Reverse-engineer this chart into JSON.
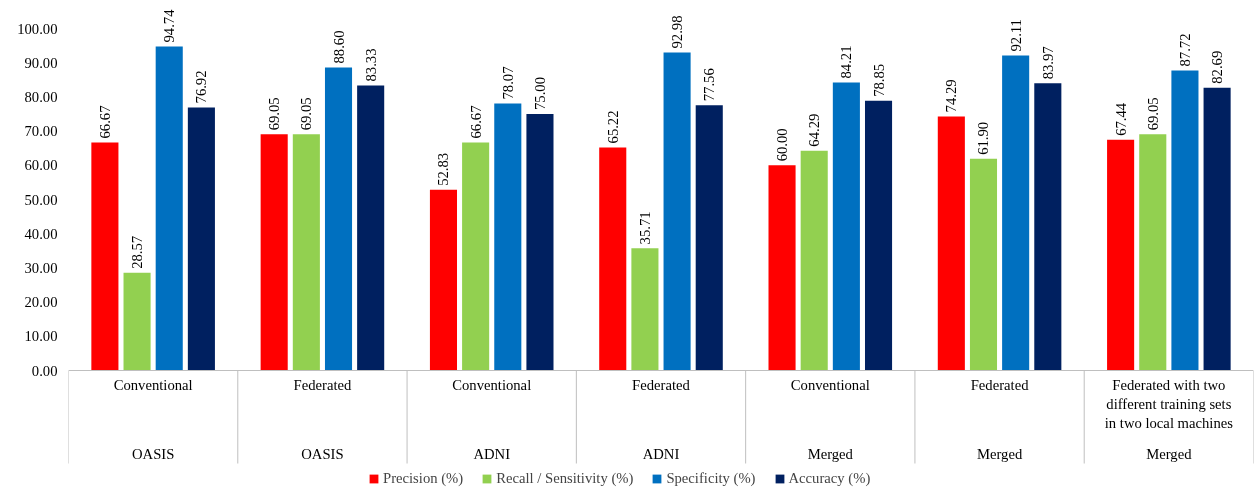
{
  "chart_data": {
    "type": "bar",
    "categories": [
      "Conventional",
      "Federated",
      "Conventional",
      "Federated",
      "Conventional",
      "Federated",
      "Federated with two different training sets in two local machines"
    ],
    "annotations": [
      "OASIS",
      "OASIS",
      "ADNI",
      "ADNI",
      "Merged",
      "Merged",
      "Merged"
    ],
    "series": [
      {
        "name": "Precision (%)",
        "color": "#ff0000",
        "values": [
          66.67,
          69.05,
          52.83,
          65.22,
          60.0,
          74.29,
          67.44
        ],
        "value_labels": [
          "66.67",
          "69.05",
          "52.83",
          "65.22",
          "60.00",
          "74.29",
          "67.44"
        ]
      },
      {
        "name": "Recall / Sensitivity (%)",
        "color": "#92d050",
        "values": [
          28.57,
          69.05,
          66.67,
          35.71,
          64.29,
          61.9,
          69.05
        ],
        "value_labels": [
          "28.57",
          "69.05",
          "66.67",
          "35.71",
          "64.29",
          "61.90",
          "69.05"
        ]
      },
      {
        "name": "Specificity (%)",
        "color": "#0070c0",
        "values": [
          94.74,
          88.6,
          78.07,
          92.98,
          84.21,
          92.11,
          87.72
        ],
        "value_labels": [
          "94.74",
          "88.60",
          "78.07",
          "92.98",
          "84.21",
          "92.11",
          "87.72"
        ]
      },
      {
        "name": "Accuracy (%)",
        "color": "#002060",
        "values": [
          76.92,
          83.33,
          75.0,
          77.56,
          78.85,
          83.97,
          82.69
        ],
        "value_labels": [
          "76.92",
          "83.33",
          "75.00",
          "77.56",
          "78.85",
          "83.97",
          "82.69"
        ]
      }
    ],
    "ylim": [
      0,
      100
    ],
    "yticks": [
      {
        "value": 0,
        "label": "0.00"
      },
      {
        "value": 10,
        "label": "10.00"
      },
      {
        "value": 20,
        "label": "20.00"
      },
      {
        "value": 30,
        "label": "30.00"
      },
      {
        "value": 40,
        "label": "40.00"
      },
      {
        "value": 50,
        "label": "50.00"
      },
      {
        "value": 60,
        "label": "60.00"
      },
      {
        "value": 70,
        "label": "70.00"
      },
      {
        "value": 80,
        "label": "80.00"
      },
      {
        "value": 90,
        "label": "90.00"
      },
      {
        "value": 100,
        "label": "100.00"
      }
    ],
    "grid": false,
    "legend": "bottom"
  }
}
